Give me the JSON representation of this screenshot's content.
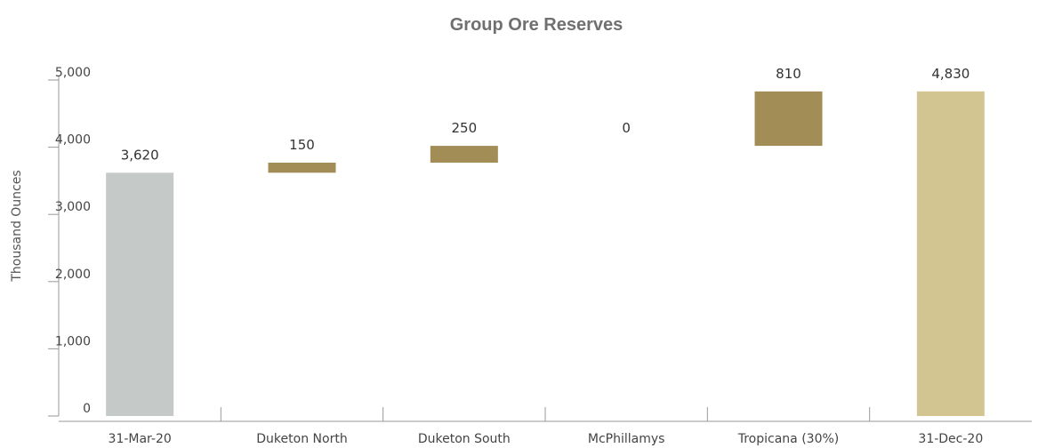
{
  "chart_data": {
    "type": "bar",
    "subtype": "waterfall",
    "title": "Group Ore Reserves",
    "xlabel": "",
    "ylabel": "Thousand Ounces",
    "ylim": [
      0,
      5000
    ],
    "yticks": [
      0,
      1000,
      2000,
      3000,
      4000,
      5000
    ],
    "ytick_labels": [
      "0",
      "1,000",
      "2,000",
      "3,000",
      "4,000",
      "5,000"
    ],
    "grid": false,
    "legend": "none",
    "categories": [
      "31-Mar-20",
      "Duketon North",
      "Duketon South",
      "McPhillamys",
      "Tropicana (30%)",
      "31-Dec-20"
    ],
    "bars": [
      {
        "category": "31-Mar-20",
        "kind": "total",
        "start": 0,
        "end": 3620,
        "label": "3,620",
        "color": "#c5c9c7"
      },
      {
        "category": "Duketon North",
        "kind": "change",
        "start": 3620,
        "end": 3770,
        "label": "150",
        "color": "#a38d57"
      },
      {
        "category": "Duketon South",
        "kind": "change",
        "start": 3770,
        "end": 4020,
        "label": "250",
        "color": "#a38d57"
      },
      {
        "category": "McPhillamys",
        "kind": "change",
        "start": 4020,
        "end": 4020,
        "label": "0",
        "color": "#a38d57"
      },
      {
        "category": "Tropicana (30%)",
        "kind": "change",
        "start": 4020,
        "end": 4830,
        "label": "810",
        "color": "#a38d57"
      },
      {
        "category": "31-Dec-20",
        "kind": "total",
        "start": 0,
        "end": 4830,
        "label": "4,830",
        "color": "#d3c592"
      }
    ]
  }
}
